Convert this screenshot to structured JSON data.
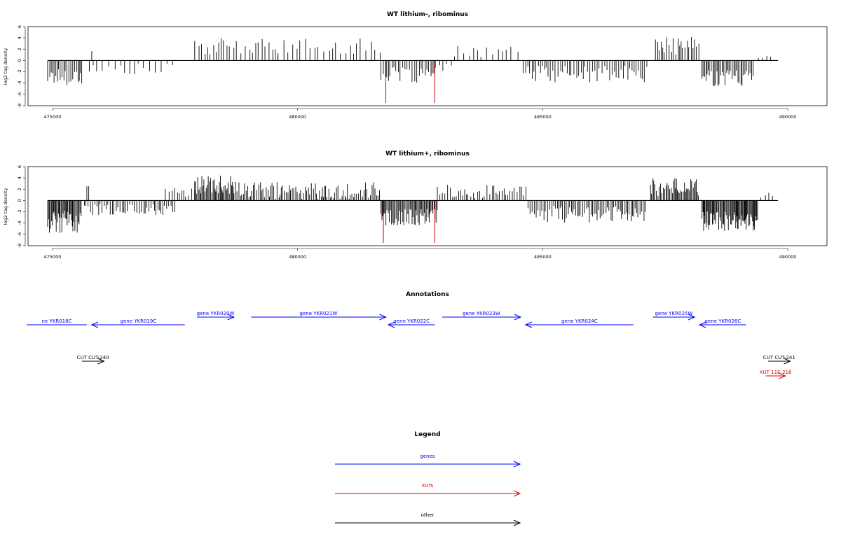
{
  "chart_data": [
    {
      "type": "bar",
      "title": "WT lithium-, ribominus",
      "xlabel": "",
      "ylabel": "log2 tag density",
      "xlim": [
        474500,
        490800
      ],
      "ylim": [
        -8,
        6
      ],
      "xticks": [
        475000,
        480000,
        485000,
        490000
      ],
      "xtick_labels": [
        "475000",
        "480000",
        "485000",
        "490000"
      ],
      "yticks": [
        6,
        4,
        2,
        0,
        -2,
        -4,
        -6,
        -8
      ],
      "ytick_labels": [
        "6",
        "4",
        "2",
        "0",
        "-2",
        "-4",
        "-6",
        "-8"
      ],
      "baseline_range": [
        474900,
        489800
      ],
      "bar_color": "#000000",
      "highlight_color": "#cc0000",
      "highlights": [
        {
          "x": 481800,
          "value": -7.5
        },
        {
          "x": 482800,
          "value": -7.5
        }
      ],
      "segments": [
        {
          "start": 474900,
          "end": 475600,
          "step": 35,
          "mean": -2.8,
          "amp": 1.6
        },
        {
          "start": 475750,
          "end": 477500,
          "step": 110,
          "mean": -1.6,
          "amp": 1.1
        },
        {
          "start": 475800,
          "end": 475850,
          "step": 40,
          "mean": 2.4,
          "amp": 0.8
        },
        {
          "start": 477900,
          "end": 479600,
          "step": 70,
          "mean": 2.4,
          "amp": 1.6
        },
        {
          "start": 479600,
          "end": 481700,
          "step": 90,
          "mean": 2.5,
          "amp": 1.4
        },
        {
          "start": 481700,
          "end": 482850,
          "step": 40,
          "mean": -2.6,
          "amp": 1.4
        },
        {
          "start": 482900,
          "end": 483200,
          "step": 80,
          "mean": -1.3,
          "amp": 0.8
        },
        {
          "start": 483200,
          "end": 484600,
          "step": 110,
          "mean": 1.6,
          "amp": 1.0
        },
        {
          "start": 484600,
          "end": 487150,
          "step": 45,
          "mean": -2.4,
          "amp": 1.5
        },
        {
          "start": 487300,
          "end": 488200,
          "step": 40,
          "mean": 2.6,
          "amp": 1.6
        },
        {
          "start": 488250,
          "end": 489300,
          "step": 30,
          "mean": -3.0,
          "amp": 1.6
        },
        {
          "start": 489400,
          "end": 489750,
          "step": 90,
          "mean": 1.0,
          "amp": 0.6
        }
      ]
    },
    {
      "type": "bar",
      "title": "WT lithium+, ribominus",
      "xlabel": "",
      "ylabel": "log2 tag density",
      "xlim": [
        474500,
        490800
      ],
      "ylim": [
        -8,
        6
      ],
      "xticks": [
        475000,
        480000,
        485000,
        490000
      ],
      "xtick_labels": [
        "475000",
        "480000",
        "485000",
        "490000"
      ],
      "yticks": [
        6,
        4,
        2,
        0,
        -2,
        -4,
        -6,
        -8
      ],
      "ytick_labels": [
        "6",
        "4",
        "2",
        "0",
        "-2",
        "-4",
        "-6",
        "-8"
      ],
      "baseline_range": [
        474900,
        489800
      ],
      "bar_color": "#000000",
      "highlight_color": "#cc0000",
      "highlights": [
        {
          "x": 481750,
          "value": -7.5
        },
        {
          "x": 482800,
          "value": -7.5
        }
      ],
      "segments": [
        {
          "start": 474900,
          "end": 475600,
          "step": 18,
          "mean": -3.8,
          "amp": 2.0
        },
        {
          "start": 475650,
          "end": 477500,
          "step": 40,
          "mean": -1.6,
          "amp": 1.0
        },
        {
          "start": 475700,
          "end": 475750,
          "step": 40,
          "mean": 2.6,
          "amp": 0.7
        },
        {
          "start": 477300,
          "end": 477900,
          "step": 60,
          "mean": 1.5,
          "amp": 1.0
        },
        {
          "start": 477900,
          "end": 478700,
          "step": 20,
          "mean": 2.8,
          "amp": 1.6
        },
        {
          "start": 478700,
          "end": 481700,
          "step": 32,
          "mean": 1.8,
          "amp": 1.5
        },
        {
          "start": 481700,
          "end": 482850,
          "step": 22,
          "mean": -3.0,
          "amp": 1.6
        },
        {
          "start": 482850,
          "end": 484700,
          "step": 45,
          "mean": 1.6,
          "amp": 1.4
        },
        {
          "start": 484700,
          "end": 487100,
          "step": 35,
          "mean": -2.4,
          "amp": 1.5
        },
        {
          "start": 487200,
          "end": 488200,
          "step": 25,
          "mean": 2.4,
          "amp": 1.6
        },
        {
          "start": 488250,
          "end": 489400,
          "step": 18,
          "mean": -3.6,
          "amp": 1.8
        },
        {
          "start": 489450,
          "end": 489750,
          "step": 80,
          "mean": 1.0,
          "amp": 0.6
        }
      ]
    }
  ],
  "annotations": {
    "title": "Annotations",
    "xlim": [
      474500,
      490800
    ],
    "features": [
      {
        "label": "ne YKR018C",
        "start": 474300,
        "end": 475700,
        "strand": "-",
        "color": "#0000ff",
        "row": 1,
        "arrow": false
      },
      {
        "label": "gene YKR019C",
        "start": 475800,
        "end": 477700,
        "strand": "-",
        "color": "#0000ff",
        "row": 1,
        "arrow": true
      },
      {
        "label": "gene YKR020W",
        "start": 477950,
        "end": 478700,
        "strand": "+",
        "color": "#0000ff",
        "row": 0,
        "arrow": true
      },
      {
        "label": "gene YKR021W",
        "start": 479050,
        "end": 481800,
        "strand": "+",
        "color": "#0000ff",
        "row": 0,
        "arrow": true
      },
      {
        "label": "gene YKR022C",
        "start": 481850,
        "end": 482800,
        "strand": "-",
        "color": "#0000ff",
        "row": 1,
        "arrow": true
      },
      {
        "label": "gene YKR023W",
        "start": 482950,
        "end": 484550,
        "strand": "+",
        "color": "#0000ff",
        "row": 0,
        "arrow": true
      },
      {
        "label": "gene YKR024C",
        "start": 484650,
        "end": 486850,
        "strand": "-",
        "color": "#0000ff",
        "row": 1,
        "arrow": true
      },
      {
        "label": "gene YKR025W",
        "start": 487250,
        "end": 488100,
        "strand": "+",
        "color": "#0000ff",
        "row": 0,
        "arrow": true
      },
      {
        "label": "gene YKR026C",
        "start": 488200,
        "end": 489150,
        "strand": "-",
        "color": "#0000ff",
        "row": 1,
        "arrow": true
      },
      {
        "label": "CUT CUT-240",
        "start": 475600,
        "end": 476050,
        "strand": "+",
        "color": "#000000",
        "row": 3,
        "arrow": true
      },
      {
        "label": "CUT CUT-241",
        "start": 489600,
        "end": 490050,
        "strand": "+",
        "color": "#000000",
        "row": 3,
        "arrow": true
      },
      {
        "label": "XUT 11E-216",
        "start": 489550,
        "end": 489950,
        "strand": "+",
        "color": "#dd0000",
        "row": 4,
        "arrow": true
      }
    ]
  },
  "legend": {
    "title": "Legend",
    "items": [
      {
        "label": "genes",
        "color": "#0000ff"
      },
      {
        "label": "XUTs",
        "color": "#dd0000"
      },
      {
        "label": "other",
        "color": "#000000"
      }
    ]
  }
}
